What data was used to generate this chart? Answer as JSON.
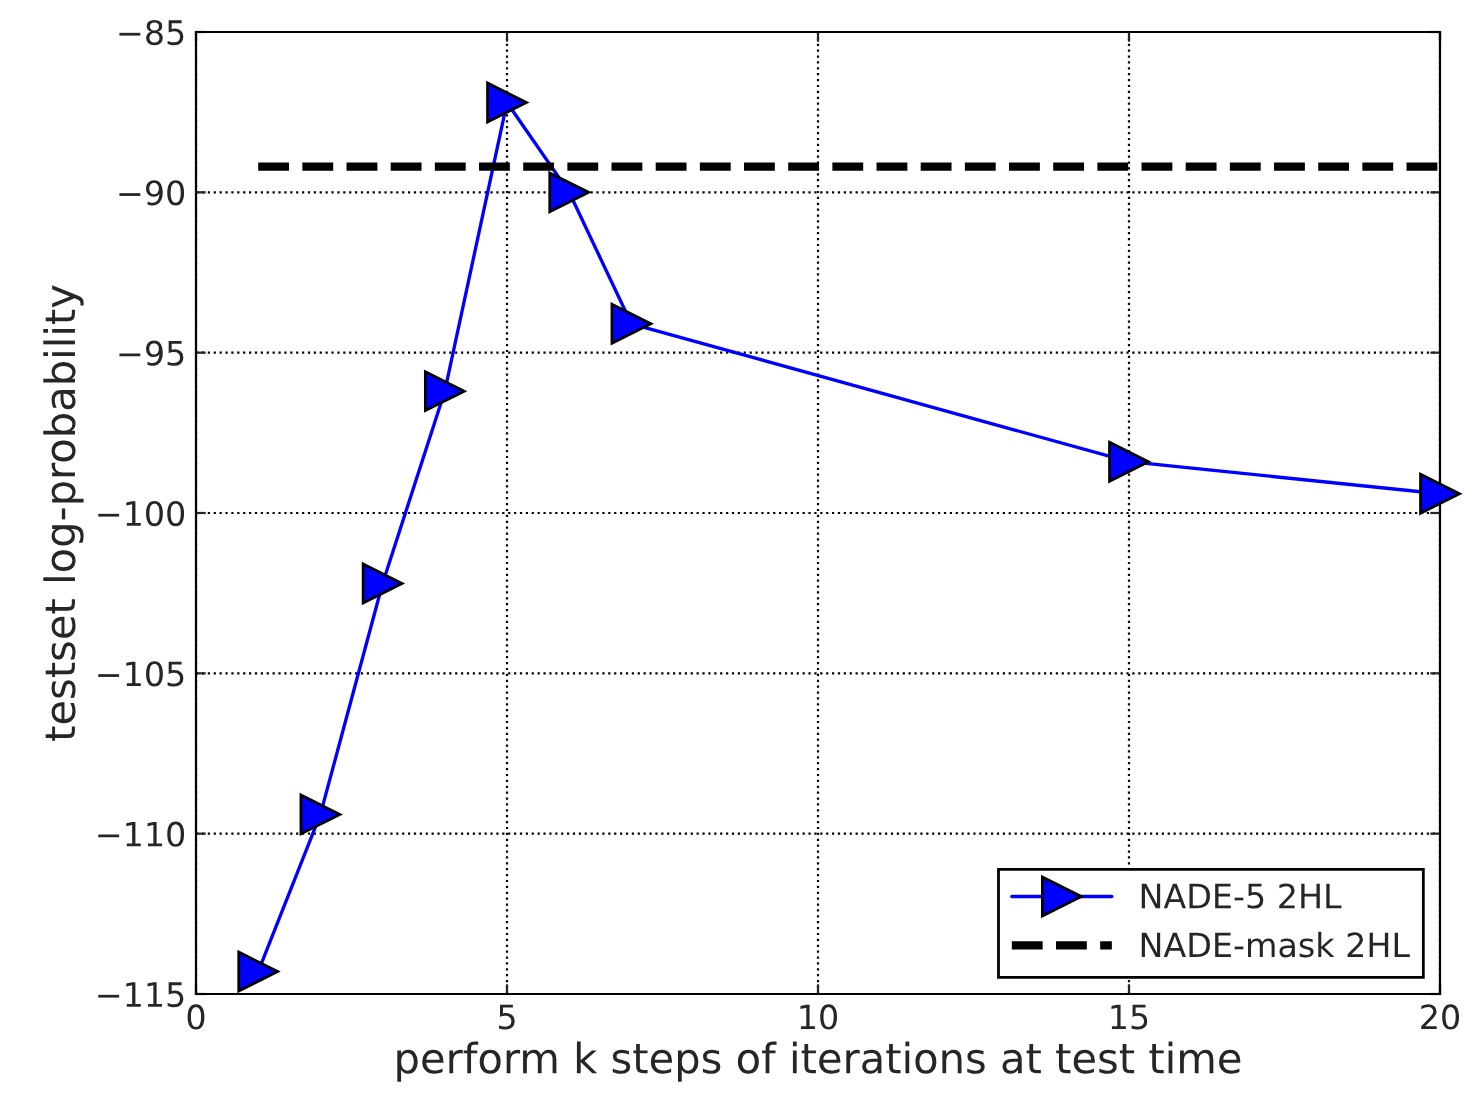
{
  "chart_data": {
    "type": "line",
    "xlabel": "perform k steps of iterations at test time",
    "ylabel": "testset log-probability",
    "series": [
      {
        "name": "NADE-5 2HL",
        "color": "#0000ff",
        "x": [
          1,
          2,
          3,
          4,
          5,
          6,
          7,
          15,
          20
        ],
        "values": [
          -114.3,
          -109.4,
          -102.2,
          -96.2,
          -87.2,
          -90.0,
          -94.1,
          -98.4,
          -99.4
        ],
        "marker": "triangle",
        "line_style": "solid"
      },
      {
        "name": "NADE-mask 2HL",
        "color": "#000000",
        "x": [
          1,
          20
        ],
        "values": [
          -89.2,
          -89.2
        ],
        "marker": "none",
        "line_style": "dashed"
      }
    ],
    "xlim": [
      0,
      20
    ],
    "xticks": [
      0,
      5,
      10,
      15,
      20
    ],
    "ylim": [
      -115,
      -85
    ],
    "yticks": [
      {
        "value": -115,
        "label": "−115"
      },
      {
        "value": -110,
        "label": "−110"
      },
      {
        "value": -105,
        "label": "−105"
      },
      {
        "value": -100,
        "label": "−100"
      },
      {
        "value": -95,
        "label": "−95"
      },
      {
        "value": -90,
        "label": "−90"
      },
      {
        "value": -85,
        "label": "−85"
      }
    ],
    "grid": true,
    "legend": "bottom right"
  }
}
